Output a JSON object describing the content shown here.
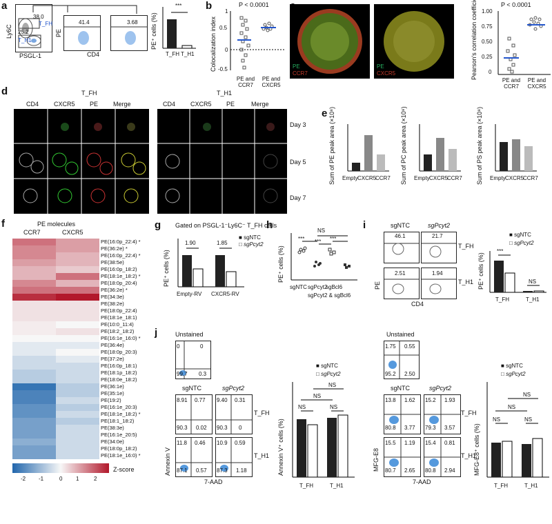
{
  "panel_letters": {
    "a": "a",
    "b": "b",
    "c": "c",
    "d": "d",
    "e": "e",
    "f": "f",
    "g": "g",
    "h": "h",
    "i": "i",
    "j": "j"
  },
  "panel_a": {
    "gate_values": [
      "38.0",
      "25.2",
      "41.4",
      "3.68"
    ],
    "gate_labels": [
      "T_FH",
      "T_H1"
    ],
    "axes": {
      "x1": "PSGL-1",
      "y1": "Ly6C",
      "x2": "CD4",
      "y2": "PE"
    },
    "sig": "***",
    "ylabel": "PE⁺ cells (%)",
    "xcats": [
      "T_FH",
      "T_H1"
    ]
  },
  "panel_b": {
    "pval": "P < 0.0001",
    "ylabel": "Colocalization index",
    "yticks": [
      "1",
      "0.5",
      "0",
      "-0.5"
    ],
    "xcats": [
      "PE and CCR7",
      "PE and CXCR5"
    ]
  },
  "panel_c": {
    "img_labels": [
      {
        "pe": "PE",
        "marker": "CCR7"
      },
      {
        "pe": "PE",
        "marker": "CXCR5"
      }
    ],
    "pval": "P < 0.0001",
    "ylabel": "Pearson's correlation coefficient",
    "yticks": [
      "1.00",
      "0.75",
      "0.50",
      "0.25",
      "0"
    ],
    "xcats": [
      "PE and CCR7",
      "PE and CXCR5"
    ]
  },
  "panel_d": {
    "groups": [
      "T_FH",
      "T_H1"
    ],
    "cols": [
      "CD4",
      "CXCR5",
      "PE",
      "Merge"
    ],
    "days": [
      "Day 3",
      "Day 5",
      "Day 7"
    ]
  },
  "panel_e": {
    "ylabels": [
      "Sum of PE peak area (×10⁸)",
      "Sum of PC peak area (×10⁸)",
      "Sum of PS peak area (×10⁸)"
    ],
    "xcats": [
      "Empty",
      "CXCR5",
      "CCR7"
    ]
  },
  "panel_f": {
    "title": "PE molecules",
    "cols": [
      "CCR7",
      "CXCR5"
    ],
    "rows": [
      "PE(16:0p_22:4) *",
      "PE(36:2e) *",
      "PE(16:0p_22:4) *",
      "PE(38:5e)",
      "PE(16:0p_18:2)",
      "PE(18:1e_18:2) *",
      "PE(18:0p_20:4)",
      "PE(36:2e) *",
      "PE(34:3e)",
      "PE(38:2e)",
      "PE(18:0p_22:4)",
      "PE(18:1e_18:1)",
      "PE(10:0_11:4)",
      "PE(18:2_18:2)",
      "PE(16:1e_16:0) *",
      "PE(36:4e)",
      "PE(18:0p_20:3)",
      "PE(37:2e)",
      "PE(16:0p_18:1)",
      "PE(18:1p_18:2)",
      "PE(18:0e_18:2)",
      "PE(36:1e)",
      "PE(35:1e)",
      "PE(19:2)",
      "PE(16:1e_20:3)",
      "PE(18:1e_18:2) *",
      "PE(18:1_18:2)",
      "PE(38:3e)",
      "PE(16:1e_20:5)",
      "PE(34:0e)",
      "PE(18:0p_18:2)",
      "PE(18:1e_16:0) *"
    ],
    "colorbar_ticks": [
      "-2",
      "-1",
      "0",
      "1",
      "2"
    ],
    "colorbar_label": "Z-score"
  },
  "panel_g": {
    "title": "Gated on PSGL-1⁻Ly6C⁻ T_FH cells",
    "ylabel": "PE⁺ cells (%)",
    "legend": [
      "sgNTC",
      "sgPcyt2"
    ],
    "ratios": [
      "1.90",
      "1.85"
    ],
    "xcats": [
      "Empty-RV",
      "CXCR5-RV"
    ]
  },
  "panel_h": {
    "ylabel": "PE⁺ cells (%)",
    "sig": [
      "***",
      "***",
      "***",
      "NS"
    ],
    "xcats": [
      "sgNTC",
      "sgPcyt2",
      "sgBcl6",
      "sgPcyt2 & sgBcl6"
    ]
  },
  "panel_i": {
    "groups": [
      "sgNTC",
      "sgPcyt2"
    ],
    "values": [
      "46.1",
      "21.7",
      "2.51",
      "1.94"
    ],
    "rows": [
      "T_FH",
      "T_H1"
    ],
    "axes": {
      "x": "CD4",
      "y": "PE"
    },
    "ylabel": "PE⁺ cells (%)",
    "legend": [
      "sgNTC",
      "sgPcyt2"
    ],
    "sig": [
      "***",
      "NS"
    ],
    "xcats": [
      "T_FH",
      "T_H1"
    ]
  },
  "panel_j": {
    "left": {
      "unstained_label": "Unstained",
      "unstained_q": [
        "0",
        "0",
        "99.7",
        "0.3"
      ],
      "groups": [
        "sgNTC",
        "sgPcyt2"
      ],
      "tfh_ntc": [
        "8.91",
        "0.77",
        "90.3",
        "0.02"
      ],
      "tfh_pcyt": [
        "9.40",
        "0.31",
        "90.3",
        "0"
      ],
      "th1_ntc": [
        "11.8",
        "0.46",
        "87.1",
        "0.57"
      ],
      "th1_pcyt": [
        "10.9",
        "0.59",
        "87.3",
        "1.18"
      ],
      "axes": {
        "x": "7-AAD",
        "y": "Annexin V"
      },
      "rows": [
        "T_FH",
        "T_H1"
      ],
      "ylabel": "Annexin V⁺ cells (%)",
      "legend": [
        "sgNTC",
        "sgPcyt2"
      ],
      "sig": [
        "NS",
        "NS",
        "NS",
        "NS"
      ],
      "xcats": [
        "T_FH",
        "T_H1"
      ]
    },
    "right": {
      "unstained_label": "Unstained",
      "unstained_q": [
        "1.75",
        "0.55",
        "95.2",
        "2.50"
      ],
      "groups": [
        "sgNTC",
        "sgPcyt2"
      ],
      "tfh_ntc": [
        "13.8",
        "1.62",
        "80.8",
        "3.77"
      ],
      "tfh_pcyt": [
        "15.2",
        "1.93",
        "79.3",
        "3.57"
      ],
      "th1_ntc": [
        "15.5",
        "1.19",
        "80.7",
        "2.65"
      ],
      "th1_pcyt": [
        "15.4",
        "0.81",
        "80.8",
        "2.94"
      ],
      "axes": {
        "x": "7-AAD",
        "y": "MFG-E8"
      },
      "rows": [
        "T_FH",
        "T_H1"
      ],
      "ylabel": "MFG-E8⁺ cells (%)",
      "legend": [
        "sgNTC",
        "sgPcyt2"
      ],
      "sig": [
        "NS",
        "NS",
        "NS",
        "NS"
      ],
      "xcats": [
        "T_FH",
        "T_H1"
      ]
    }
  },
  "colors": {
    "dark_bar": "#111111",
    "light_bar": "#ffffff",
    "hm_high": "#b2182b",
    "hm_low": "#2166ac",
    "micro_bg": "#000000"
  }
}
